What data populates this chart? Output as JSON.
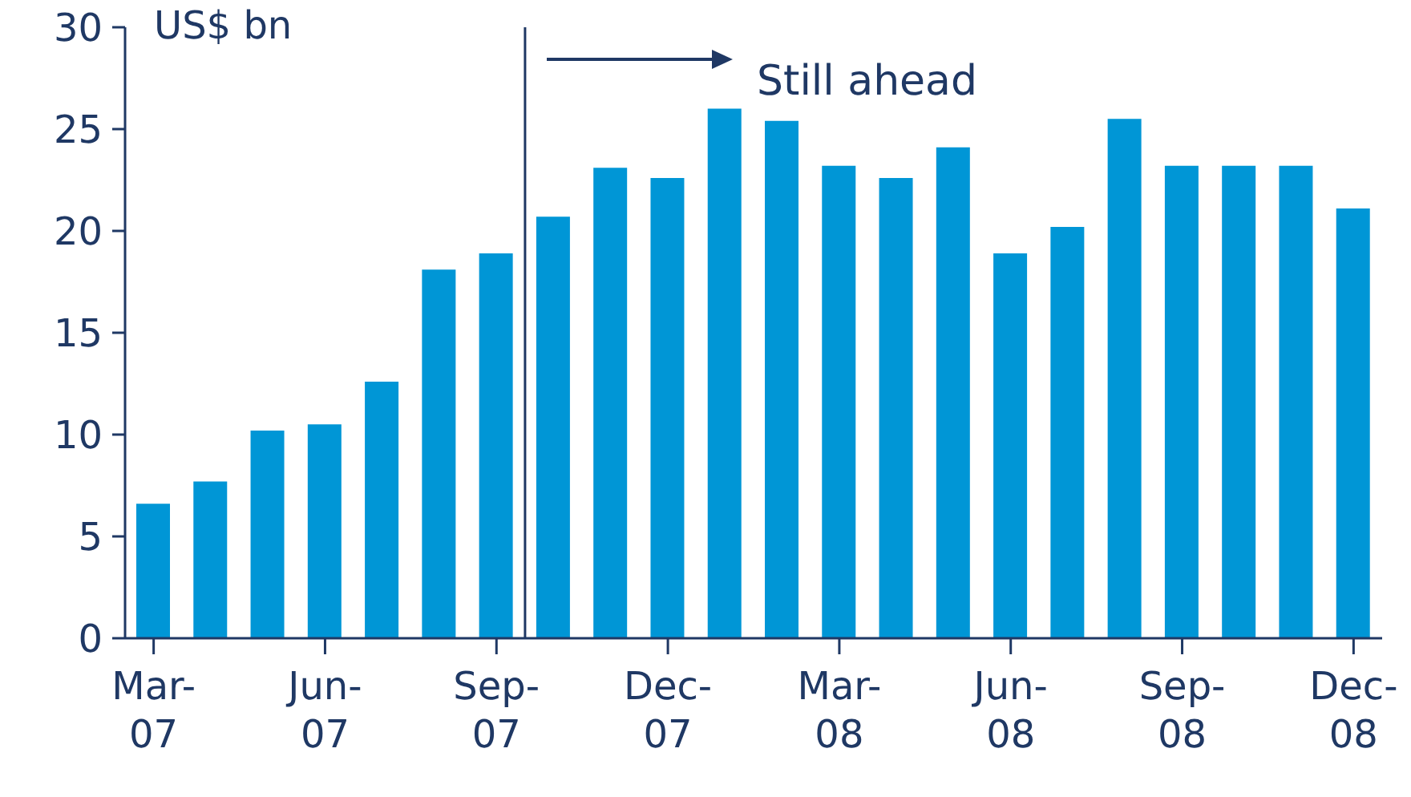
{
  "chart_data": {
    "type": "bar",
    "ylabel": "US$ bn",
    "annotations": [
      "Still ahead"
    ],
    "categories": [
      "Mar-07",
      null,
      null,
      "Jun-07",
      null,
      null,
      "Sep-07",
      null,
      null,
      "Dec-07",
      null,
      null,
      "Mar-08",
      null,
      null,
      "Jun-08",
      null,
      null,
      "Sep-08",
      null,
      null,
      "Dec-08"
    ],
    "values": [
      6.6,
      7.7,
      10.2,
      10.5,
      12.6,
      18.1,
      18.9,
      20.7,
      23.1,
      22.6,
      26.0,
      25.4,
      23.2,
      22.6,
      24.1,
      18.9,
      20.2,
      25.5,
      23.2,
      23.2,
      23.2,
      21.1
    ],
    "color": "#0096d6",
    "ylim": [
      0,
      30
    ],
    "yticks": [
      0,
      5,
      10,
      15,
      20,
      25,
      30
    ],
    "grid": false,
    "legend": false
  }
}
